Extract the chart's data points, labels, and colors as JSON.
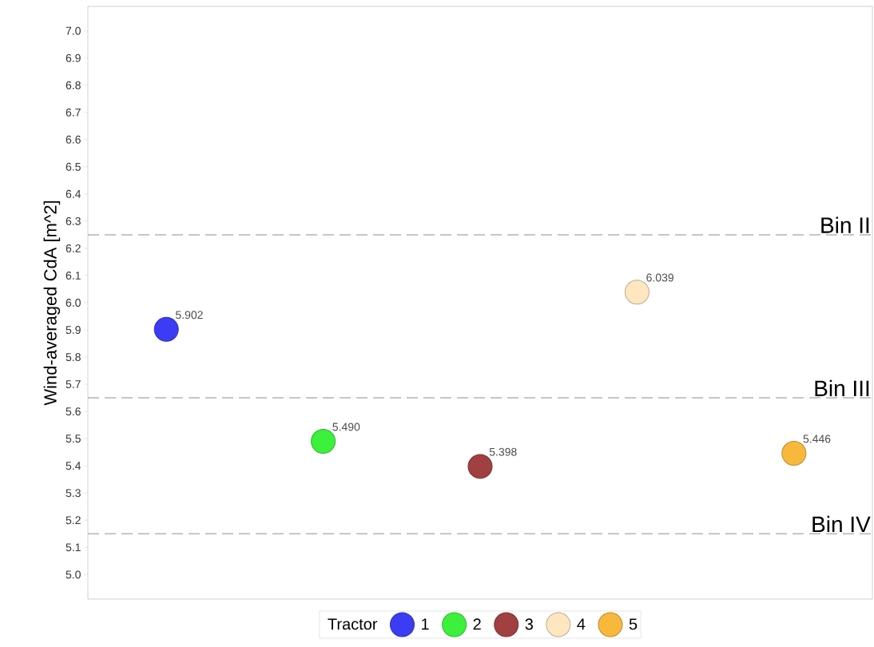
{
  "chart_data": {
    "type": "scatter",
    "ylabel": "Wind-averaged CdA [m^2]",
    "legend_title": "Tractor",
    "categories": [
      null,
      null,
      null,
      null,
      null
    ],
    "series": [
      {
        "name": "1",
        "color": "#3c3cf5",
        "values": [
          5.902,
          null,
          null,
          null,
          null
        ],
        "value_labels": [
          "5.902",
          null,
          null,
          null,
          null
        ]
      },
      {
        "name": "2",
        "color": "#3cf03c",
        "values": [
          null,
          5.49,
          null,
          null,
          null
        ],
        "value_labels": [
          null,
          "5.490",
          null,
          null,
          null
        ]
      },
      {
        "name": "3",
        "color": "#a04040",
        "values": [
          null,
          null,
          5.398,
          null,
          null
        ],
        "value_labels": [
          null,
          null,
          "5.398",
          null,
          null
        ]
      },
      {
        "name": "4",
        "color": "#fde6c0",
        "values": [
          null,
          null,
          null,
          6.039,
          null
        ],
        "value_labels": [
          null,
          null,
          null,
          "6.039",
          null
        ]
      },
      {
        "name": "5",
        "color": "#f8b83c",
        "values": [
          null,
          null,
          null,
          null,
          5.446
        ],
        "value_labels": [
          null,
          null,
          null,
          null,
          "5.446"
        ]
      }
    ],
    "ylim": [
      4.91,
      7.09
    ],
    "yticks": [
      {
        "value": 5.0,
        "label": "5.0"
      },
      {
        "value": 5.1,
        "label": "5.1"
      },
      {
        "value": 5.2,
        "label": "5.2"
      },
      {
        "value": 5.3,
        "label": "5.3"
      },
      {
        "value": 5.4,
        "label": "5.4"
      },
      {
        "value": 5.5,
        "label": "5.5"
      },
      {
        "value": 5.6,
        "label": "5.6"
      },
      {
        "value": 5.7,
        "label": "5.7"
      },
      {
        "value": 5.8,
        "label": "5.8"
      },
      {
        "value": 5.9,
        "label": "5.9"
      },
      {
        "value": 6.0,
        "label": "6.0"
      },
      {
        "value": 6.1,
        "label": "6.1"
      },
      {
        "value": 6.2,
        "label": "6.2"
      },
      {
        "value": 6.3,
        "label": "6.3"
      },
      {
        "value": 6.4,
        "label": "6.4"
      },
      {
        "value": 6.5,
        "label": "6.5"
      },
      {
        "value": 6.6,
        "label": "6.6"
      },
      {
        "value": 6.7,
        "label": "6.7"
      },
      {
        "value": 6.8,
        "label": "6.8"
      },
      {
        "value": 6.9,
        "label": "6.9"
      },
      {
        "value": 7.0,
        "label": "7.0"
      }
    ],
    "ref_lines": [
      {
        "axis": "y",
        "value": 6.25,
        "label": "Bin II",
        "color": "#b4b4b4",
        "line_style": "dashed"
      },
      {
        "axis": "y",
        "value": 5.65,
        "label": "Bin III",
        "color": "#b4b4b4",
        "line_style": "dashed"
      },
      {
        "axis": "y",
        "value": 5.15,
        "label": "Bin IV",
        "color": "#b4b4b4",
        "line_style": "dashed"
      }
    ],
    "legend": "bottom",
    "grid": false
  }
}
